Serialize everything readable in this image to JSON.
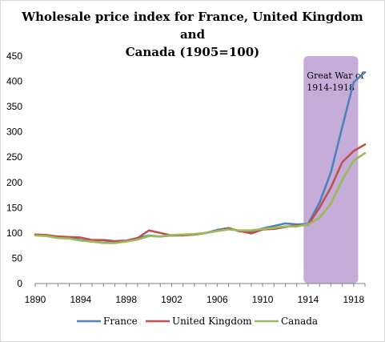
{
  "chart_data": {
    "type": "line",
    "title": "Wholesale price index for France, United Kingdom and Canada (1905=100)",
    "title_lines": [
      "Wholesale price index for France, United Kingdom and",
      "Canada (1905=100)"
    ],
    "xlabel": "",
    "ylabel": "",
    "x": [
      1890,
      1891,
      1892,
      1893,
      1894,
      1895,
      1896,
      1897,
      1898,
      1899,
      1900,
      1901,
      1902,
      1903,
      1904,
      1905,
      1906,
      1907,
      1908,
      1909,
      1910,
      1911,
      1912,
      1913,
      1914,
      1915,
      1916,
      1917,
      1918,
      1919
    ],
    "xticks": [
      1890,
      1894,
      1898,
      1902,
      1906,
      1910,
      1914,
      1918
    ],
    "ylim": [
      0,
      450
    ],
    "yticks": [
      0,
      50,
      100,
      150,
      200,
      250,
      300,
      350,
      400,
      450
    ],
    "grid": false,
    "legend": "bottom",
    "series": [
      {
        "name": "France",
        "color": "#4f81bd",
        "values": [
          97,
          95,
          92,
          91,
          86,
          83,
          81,
          82,
          84,
          90,
          95,
          93,
          95,
          96,
          97,
          100,
          106,
          110,
          103,
          102,
          109,
          114,
          119,
          117,
          118,
          160,
          220,
          310,
          398,
          418
        ]
      },
      {
        "name": "United Kingdom",
        "color": "#c0504d",
        "values": [
          97,
          96,
          93,
          92,
          91,
          86,
          86,
          84,
          85,
          90,
          105,
          100,
          95,
          95,
          97,
          100,
          104,
          109,
          104,
          99,
          107,
          108,
          112,
          115,
          116,
          150,
          190,
          240,
          262,
          275
        ]
      },
      {
        "name": "Canada",
        "color": "#9bbb59",
        "values": [
          95,
          94,
          90,
          89,
          85,
          83,
          80,
          80,
          83,
          87,
          94,
          93,
          96,
          97,
          98,
          100,
          104,
          107,
          105,
          105,
          108,
          110,
          113,
          113,
          117,
          130,
          158,
          205,
          243,
          258
        ]
      }
    ],
    "annotation": {
      "text_lines": [
        "Great War of",
        "1914-1918"
      ],
      "x_from": 1913.6,
      "x_to": 1918.4,
      "color": "#c5acd9"
    }
  }
}
